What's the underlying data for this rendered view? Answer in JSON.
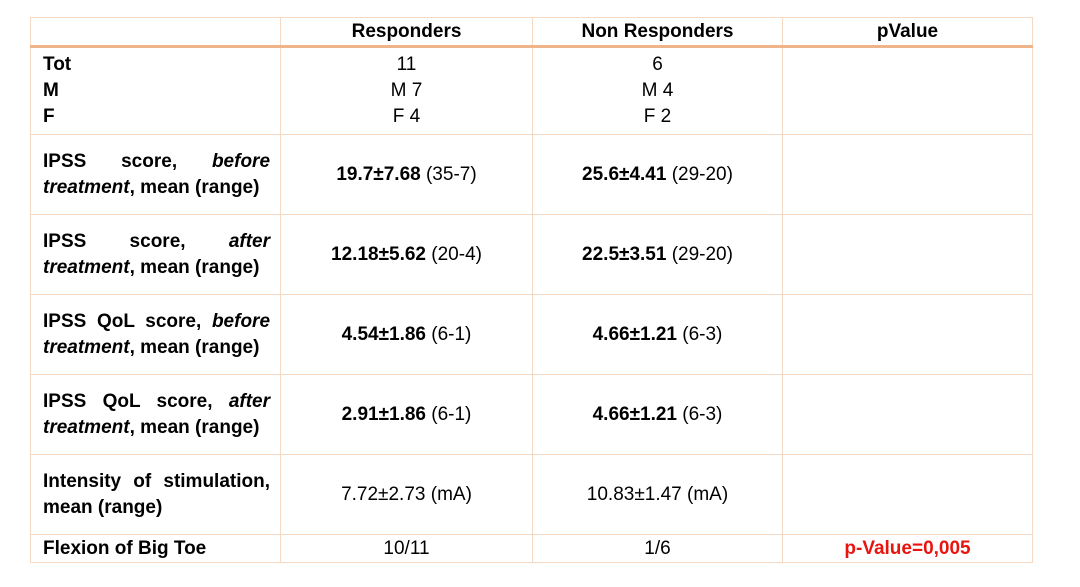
{
  "table": {
    "header": [
      "Responders",
      "Non Responders",
      "pValue"
    ],
    "rows": [
      {
        "label": [
          "Tot",
          "M",
          "F"
        ],
        "responders": [
          "11",
          "M 7",
          "F 4"
        ],
        "non_responders": [
          "6",
          "M 4",
          "F 2"
        ]
      },
      {
        "label": [
          "IPSS score,",
          "before treatment",
          ", mean (range)"
        ],
        "responders": [
          "19.7±7.68",
          "(35-7)"
        ],
        "non_responders": [
          "25.6±4.41",
          "(29-20)"
        ]
      },
      {
        "label": [
          "IPSS score,",
          "after treatment",
          ", mean (range)"
        ],
        "responders": [
          "12.18±5.62",
          "(20-4)"
        ],
        "non_responders": [
          "22.5±3.51",
          "(29-20)"
        ]
      },
      {
        "label": [
          "IPSS QoL score,",
          "before treatment",
          ", mean (range)"
        ],
        "responders": [
          "4.54±1.86",
          "(6-1)"
        ],
        "non_responders": [
          "4.66±1.21",
          "(6-3)"
        ]
      },
      {
        "label": [
          "IPSS QoL score,",
          "after treatment",
          ", mean (range)"
        ],
        "responders": [
          "2.91±1.86",
          "(6-1)"
        ],
        "non_responders": [
          "4.66±1.21",
          "(6-3)"
        ]
      },
      {
        "label": "Intensity of stimulation, mean (range)",
        "responders": "7.72±2.73  (mA)",
        "non_responders": "10.83±1.47 (mA)"
      },
      {
        "label": "Flexion of Big Toe",
        "responders": "10/11",
        "non_responders": "1/6",
        "pvalue": "p-Value=0,005"
      }
    ]
  }
}
